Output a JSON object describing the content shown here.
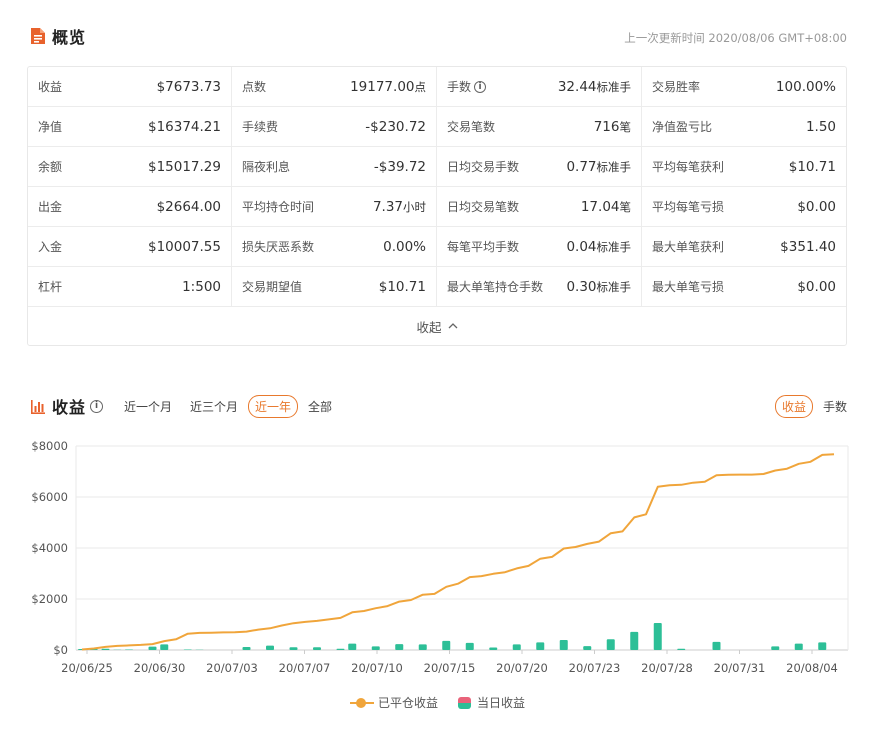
{
  "overview": {
    "title": "概览",
    "update_time": "上一次更新时间 2020/08/06 GMT+08:00",
    "stats": [
      {
        "label": "收益",
        "value": "$7673.73",
        "unit": ""
      },
      {
        "label": "点数",
        "value": "19177.00",
        "unit": "点"
      },
      {
        "label": "手数",
        "value": "32.44",
        "unit": "标准手",
        "info": "i"
      },
      {
        "label": "交易胜率",
        "value": "100.00%",
        "unit": ""
      },
      {
        "label": "净值",
        "value": "$16374.21",
        "unit": ""
      },
      {
        "label": "手续费",
        "value": "-$230.72",
        "unit": ""
      },
      {
        "label": "交易笔数",
        "value": "716",
        "unit": "笔"
      },
      {
        "label": "净值盈亏比",
        "value": "1.50",
        "unit": ""
      },
      {
        "label": "余额",
        "value": "$15017.29",
        "unit": ""
      },
      {
        "label": "隔夜利息",
        "value": "-$39.72",
        "unit": ""
      },
      {
        "label": "日均交易手数",
        "value": "0.77",
        "unit": "标准手"
      },
      {
        "label": "平均每笔获利",
        "value": "$10.71",
        "unit": ""
      },
      {
        "label": "出金",
        "value": "$2664.00",
        "unit": ""
      },
      {
        "label": "平均持仓时间",
        "value": "7.37",
        "unit": "小时"
      },
      {
        "label": "日均交易笔数",
        "value": "17.04",
        "unit": "笔"
      },
      {
        "label": "平均每笔亏损",
        "value": "$0.00",
        "unit": ""
      },
      {
        "label": "入金",
        "value": "$10007.55",
        "unit": ""
      },
      {
        "label": "损失厌恶系数",
        "value": "0.00%",
        "unit": ""
      },
      {
        "label": "每笔平均手数",
        "value": "0.04",
        "unit": "标准手"
      },
      {
        "label": "最大单笔获利",
        "value": "$351.40",
        "unit": ""
      },
      {
        "label": "杠杆",
        "value": "1:500",
        "unit": ""
      },
      {
        "label": "交易期望值",
        "value": "$10.71",
        "unit": ""
      },
      {
        "label": "最大单笔持仓手数",
        "value": "0.30",
        "unit": "标准手"
      },
      {
        "label": "最大单笔亏损",
        "value": "$0.00",
        "unit": ""
      }
    ],
    "collapse_label": "收起"
  },
  "profit": {
    "title": "收益",
    "info": "i",
    "filters": [
      "近一个月",
      "近三个月",
      "近一年",
      "全部"
    ],
    "active_filter": "近一年",
    "toggles": [
      "收益",
      "手数"
    ],
    "active_toggle": "收益"
  },
  "colors": {
    "accent": "#e8792d",
    "line": "#f0a53b",
    "bar": "#2dbf97",
    "bar_loss": "#e9637a",
    "icon": "#e8622c"
  },
  "chart_data": {
    "type": "line",
    "title": "",
    "xlabel": "",
    "ylabel": "",
    "ylim": [
      0,
      8000
    ],
    "yticks": [
      "$0",
      "$2000",
      "$4000",
      "$6000",
      "$8000"
    ],
    "x_tick_labels": [
      "20/06/25",
      "20/06/30",
      "20/07/03",
      "20/07/07",
      "20/07/10",
      "20/07/15",
      "20/07/20",
      "20/07/23",
      "20/07/28",
      "20/07/31",
      "20/08/04"
    ],
    "grid": true,
    "legend_position": "bottom",
    "series": [
      {
        "name": "已平仓收益",
        "type": "line",
        "values": [
          20,
          60,
          120,
          160,
          180,
          200,
          230,
          350,
          420,
          640,
          670,
          680,
          690,
          700,
          720,
          800,
          850,
          960,
          1050,
          1100,
          1140,
          1200,
          1260,
          1480,
          1530,
          1640,
          1720,
          1900,
          1960,
          2170,
          2200,
          2480,
          2600,
          2860,
          2900,
          2990,
          3050,
          3200,
          3300,
          3580,
          3650,
          3980,
          4040,
          4160,
          4250,
          4580,
          4650,
          5200,
          5320,
          6400,
          6460,
          6480,
          6560,
          6600,
          6850,
          6870,
          6880,
          6880,
          6900,
          7040,
          7110,
          7300,
          7380,
          7650,
          7680
        ]
      },
      {
        "name": "当日收益",
        "type": "bar",
        "values": [
          40,
          40,
          50,
          10,
          20,
          0,
          130,
          220,
          0,
          20,
          10,
          0,
          0,
          0,
          120,
          0,
          170,
          0,
          110,
          0,
          110,
          0,
          50,
          250,
          0,
          140,
          0,
          230,
          0,
          220,
          0,
          360,
          0,
          280,
          0,
          100,
          0,
          220,
          0,
          300,
          0,
          390,
          0,
          150,
          0,
          420,
          0,
          710,
          0,
          1060,
          0,
          50,
          0,
          0,
          320,
          0,
          0,
          0,
          0,
          140,
          0,
          250,
          0,
          300,
          0
        ]
      }
    ]
  }
}
